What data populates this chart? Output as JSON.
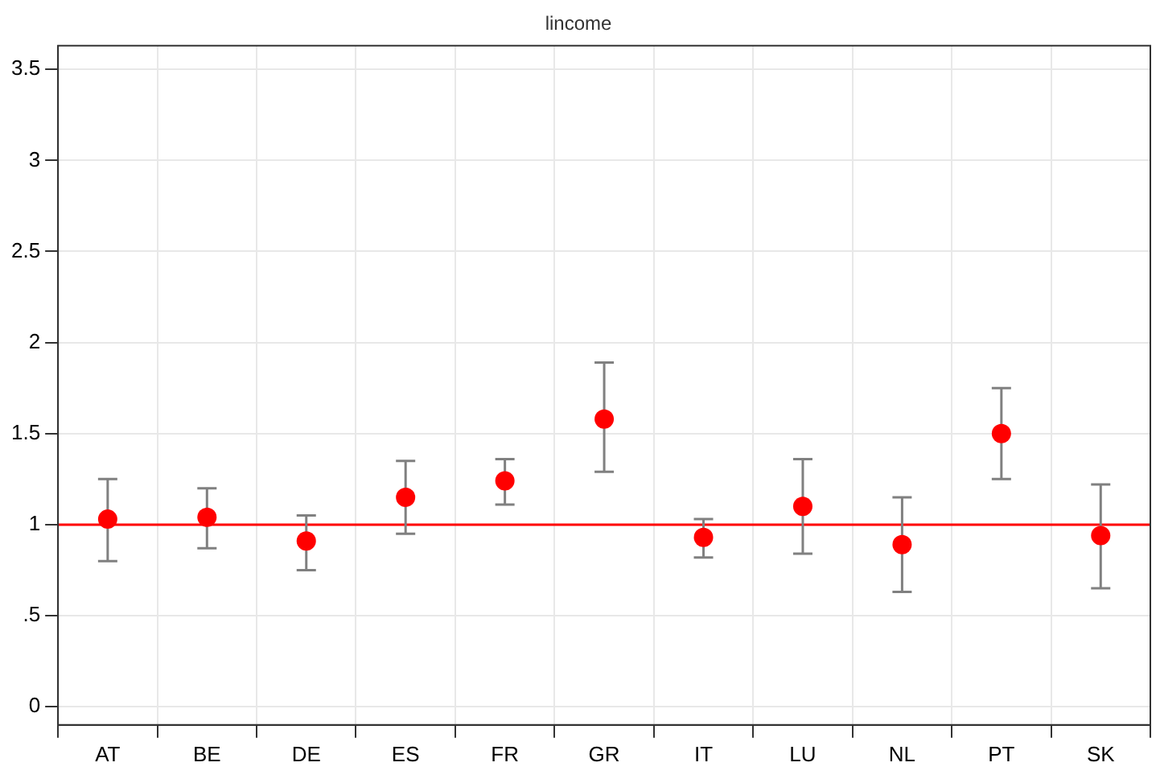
{
  "chart_data": {
    "type": "scatter",
    "title": "lincome",
    "categories": [
      "AT",
      "BE",
      "DE",
      "ES",
      "FR",
      "GR",
      "IT",
      "LU",
      "NL",
      "PT",
      "SK"
    ],
    "series": [
      {
        "color": "#ff0000",
        "values": [
          1.03,
          1.04,
          0.91,
          1.15,
          1.24,
          1.58,
          0.93,
          1.1,
          0.89,
          1.5,
          0.94
        ],
        "errors": [
          [
            0.8,
            1.25
          ],
          [
            0.87,
            1.2
          ],
          [
            0.75,
            1.05
          ],
          [
            0.95,
            1.35
          ],
          [
            1.11,
            1.36
          ],
          [
            1.29,
            1.89
          ],
          [
            0.82,
            1.03
          ],
          [
            0.84,
            1.36
          ],
          [
            0.63,
            1.15
          ],
          [
            1.25,
            1.75
          ],
          [
            0.65,
            1.22
          ]
        ]
      }
    ],
    "ylim": [
      -0.1,
      3.63
    ],
    "yticks": [
      0,
      {
        "value": 0.5,
        "label": ".5"
      },
      1,
      {
        "value": 1.5,
        "label": "1.5"
      },
      2,
      {
        "value": 2.5,
        "label": "2.5"
      },
      3,
      {
        "value": 3.5,
        "label": "3.5"
      }
    ],
    "ref_lines": [
      {
        "axis": "y",
        "value": 1,
        "color": "#ff0000"
      }
    ],
    "grid": true,
    "marker": "circle",
    "legend": false
  }
}
